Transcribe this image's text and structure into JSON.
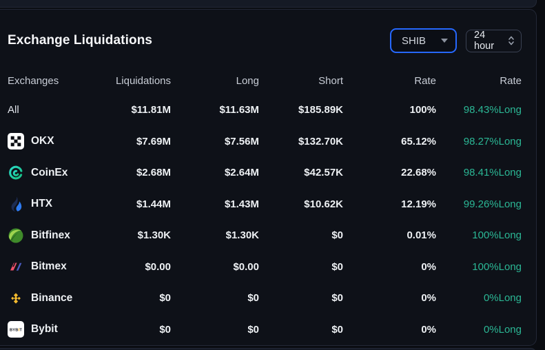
{
  "panel": {
    "title": "Exchange Liquidations",
    "symbol_select": {
      "value": "SHIB"
    },
    "time_select": {
      "value": "24 hour"
    }
  },
  "table": {
    "columns": [
      "Exchanges",
      "Liquidations",
      "Long",
      "Short",
      "Rate",
      "Rate"
    ],
    "rows": [
      {
        "exchange": "All",
        "icon": null,
        "liquidations": "$11.81M",
        "long": "$11.63M",
        "short": "$185.89K",
        "rate": "100%",
        "long_rate": "98.43%Long"
      },
      {
        "exchange": "OKX",
        "icon": "okx-icon",
        "liquidations": "$7.69M",
        "long": "$7.56M",
        "short": "$132.70K",
        "rate": "65.12%",
        "long_rate": "98.27%Long"
      },
      {
        "exchange": "CoinEx",
        "icon": "coinex-icon",
        "liquidations": "$2.68M",
        "long": "$2.64M",
        "short": "$42.57K",
        "rate": "22.68%",
        "long_rate": "98.41%Long"
      },
      {
        "exchange": "HTX",
        "icon": "htx-icon",
        "liquidations": "$1.44M",
        "long": "$1.43M",
        "short": "$10.62K",
        "rate": "12.19%",
        "long_rate": "99.26%Long"
      },
      {
        "exchange": "Bitfinex",
        "icon": "bitfinex-icon",
        "liquidations": "$1.30K",
        "long": "$1.30K",
        "short": "$0",
        "rate": "0.01%",
        "long_rate": "100%Long"
      },
      {
        "exchange": "Bitmex",
        "icon": "bitmex-icon",
        "liquidations": "$0.00",
        "long": "$0.00",
        "short": "$0",
        "rate": "0%",
        "long_rate": "100%Long"
      },
      {
        "exchange": "Binance",
        "icon": "binance-icon",
        "liquidations": "$0",
        "long": "$0",
        "short": "$0",
        "rate": "0%",
        "long_rate": "0%Long"
      },
      {
        "exchange": "Bybit",
        "icon": "bybit-icon",
        "liquidations": "$0",
        "long": "$0",
        "short": "$0",
        "rate": "0%",
        "long_rate": "0%Long"
      }
    ]
  },
  "colors": {
    "accent_blue": "#2668ff",
    "long_green": "#2bb795",
    "card_bg": "#0e1118",
    "page_bg": "#0a0c11",
    "strip_bg": "#151a25",
    "binance_yellow": "#f3ba2f",
    "bybit_yellow": "#f7a600"
  }
}
